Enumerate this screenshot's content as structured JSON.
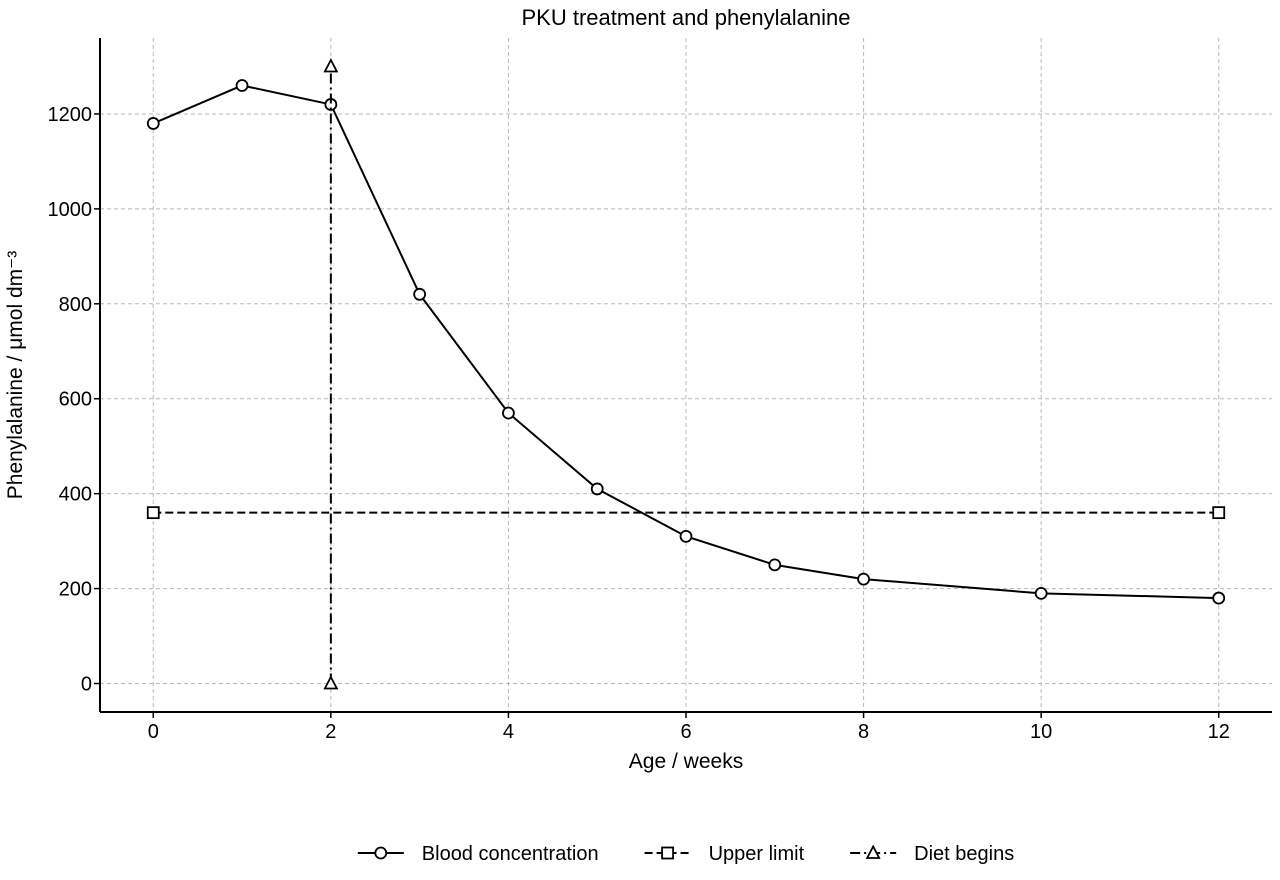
{
  "chart_data": {
    "type": "line",
    "title": "PKU treatment and phenylalanine",
    "xlabel": "Age / weeks",
    "ylabel": "Phenylalanine / μmol dm⁻³",
    "xlim": [
      -0.6,
      12.6
    ],
    "ylim": [
      -60,
      1360
    ],
    "xticks": [
      0,
      2,
      4,
      6,
      8,
      10,
      12
    ],
    "yticks": [
      0,
      200,
      400,
      600,
      800,
      1000,
      1200
    ],
    "grid": true,
    "legend": "bottom-center",
    "series": [
      {
        "name": "Blood concentration",
        "style": "solid",
        "marker": "circle",
        "x": [
          0,
          1,
          2,
          3,
          4,
          5,
          6,
          7,
          8,
          10,
          12
        ],
        "y": [
          1180,
          1260,
          1220,
          820,
          570,
          410,
          310,
          250,
          220,
          190,
          180
        ]
      },
      {
        "name": "Upper limit",
        "style": "dashed",
        "marker": "square",
        "x": [
          0,
          12
        ],
        "y": [
          360,
          360
        ]
      },
      {
        "name": "Diet begins",
        "style": "dashdot",
        "marker": "triangle",
        "x": [
          2,
          2
        ],
        "y": [
          0,
          1300
        ]
      }
    ]
  }
}
